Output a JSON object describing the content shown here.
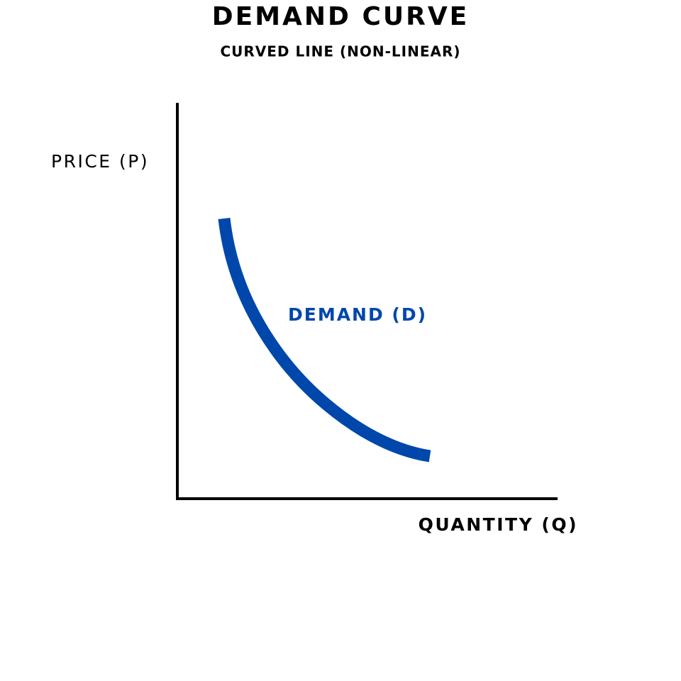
{
  "title": "DEMAND CURVE",
  "subtitle": "CURVED LINE (NON-LINEAR)",
  "y_axis_label": "PRICE (P)",
  "x_axis_label": "QUANTITY (Q)",
  "curve_label": "DEMAND (D)"
}
